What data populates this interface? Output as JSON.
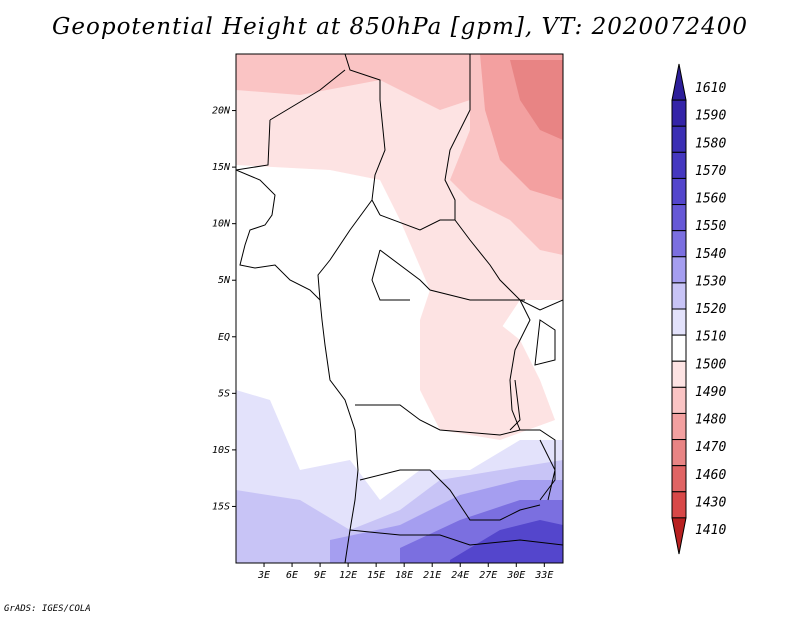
{
  "title": "Geopotential Height at 850hPa [gpm], VT: 2020072400",
  "credit": "GrADS: IGES/COLA",
  "map": {
    "lat_labels": [
      {
        "lat": 20,
        "text": "20N"
      },
      {
        "lat": 15,
        "text": "15N"
      },
      {
        "lat": 10,
        "text": "10N"
      },
      {
        "lat": 5,
        "text": "5N"
      },
      {
        "lat": 0,
        "text": "EQ"
      },
      {
        "lat": -5,
        "text": "5S"
      },
      {
        "lat": -10,
        "text": "10S"
      },
      {
        "lat": -15,
        "text": "15S"
      }
    ],
    "lon_labels": [
      {
        "lon": 3,
        "text": "3E"
      },
      {
        "lon": 6,
        "text": "6E"
      },
      {
        "lon": 9,
        "text": "9E"
      },
      {
        "lon": 12,
        "text": "12E"
      },
      {
        "lon": 15,
        "text": "15E"
      },
      {
        "lon": 18,
        "text": "18E"
      },
      {
        "lon": 21,
        "text": "21E"
      },
      {
        "lon": 24,
        "text": "24E"
      },
      {
        "lon": 27,
        "text": "27E"
      },
      {
        "lon": 30,
        "text": "30E"
      },
      {
        "lon": 33,
        "text": "33E"
      }
    ],
    "lon_range": [
      0,
      35
    ],
    "lat_range": [
      -20,
      25
    ]
  },
  "legend": {
    "levels": [
      {
        "label": "1610",
        "color": "#2d1e9a"
      },
      {
        "label": "1590",
        "color": "#3424a8"
      },
      {
        "label": "1580",
        "color": "#3b2fb4"
      },
      {
        "label": "1570",
        "color": "#4538c0"
      },
      {
        "label": "1560",
        "color": "#5446cc"
      },
      {
        "label": "1550",
        "color": "#6658d6"
      },
      {
        "label": "1540",
        "color": "#7b6fe0"
      },
      {
        "label": "1530",
        "color": "#a59ef0"
      },
      {
        "label": "1520",
        "color": "#c8c4f6"
      },
      {
        "label": "1510",
        "color": "#e3e2fb"
      },
      {
        "label": "1500",
        "color": "#ffffff"
      },
      {
        "label": "1490",
        "color": "#fde3e3"
      },
      {
        "label": "1480",
        "color": "#fac4c4"
      },
      {
        "label": "1470",
        "color": "#f3a0a0"
      },
      {
        "label": "1460",
        "color": "#e88484"
      },
      {
        "label": "1430",
        "color": "#e06464"
      },
      {
        "label": "1410",
        "color": "#d84848"
      }
    ],
    "bottom_color": "#b82020"
  }
}
